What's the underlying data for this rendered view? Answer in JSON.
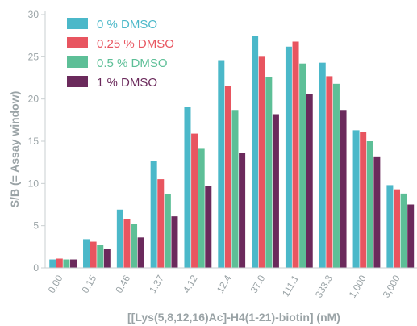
{
  "chart_data": {
    "type": "bar",
    "xlabel": "[[Lys(5,8,12,16)Ac]-H4(1-21)-biotin] (nM)",
    "ylabel": "S/B (= Assay window)",
    "ylim": [
      0,
      30
    ],
    "yticks": [
      0,
      5,
      10,
      15,
      20,
      25,
      30
    ],
    "grid": false,
    "legend_position": "top-left",
    "categories": [
      "0.00",
      "0.15",
      "0.46",
      "1.37",
      "4.12",
      "12.4",
      "37.0",
      "111.1",
      "333.3",
      "1,000",
      "3,000"
    ],
    "series": [
      {
        "name": "0 % DMSO",
        "color": "#4bb8c9",
        "values": [
          1.0,
          3.4,
          6.9,
          12.7,
          19.1,
          24.6,
          27.5,
          26.2,
          24.3,
          16.3,
          9.8
        ]
      },
      {
        "name": "0.25 % DMSO",
        "color": "#e85560",
        "values": [
          1.1,
          3.1,
          5.8,
          10.5,
          15.9,
          21.5,
          25.0,
          26.8,
          22.7,
          16.1,
          9.3
        ]
      },
      {
        "name": "0.5 % DMSO",
        "color": "#5dbf97",
        "values": [
          1.0,
          2.7,
          5.2,
          8.7,
          14.1,
          18.7,
          22.6,
          24.2,
          21.8,
          15.0,
          8.8
        ]
      },
      {
        "name": "1 % DMSO",
        "color": "#6b2a5c",
        "values": [
          1.0,
          2.2,
          3.6,
          6.1,
          9.7,
          13.6,
          18.2,
          20.6,
          18.7,
          13.2,
          7.5
        ]
      }
    ]
  }
}
